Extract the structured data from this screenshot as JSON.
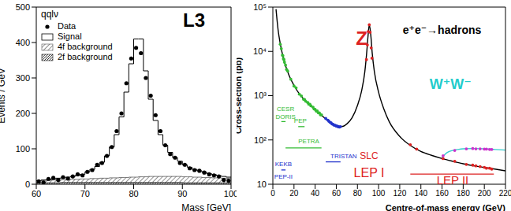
{
  "chart_data": [
    {
      "type": "histogram",
      "title": "L3",
      "legend_title": "qqlν",
      "xlabel": "Mass [GeV]",
      "ylabel": "Events / GeV",
      "legend": "upper left",
      "bins": [
        60,
        61,
        62,
        63,
        64,
        65,
        66,
        67,
        68,
        69,
        70,
        71,
        72,
        73,
        74,
        75,
        76,
        77,
        78,
        79,
        80,
        81,
        82,
        83,
        84,
        85,
        86,
        87,
        88,
        89,
        90,
        91,
        92,
        93,
        94,
        95,
        96,
        97,
        98,
        99,
        100
      ],
      "xlim": [
        60,
        100
      ],
      "xticks": [
        60,
        70,
        80,
        90,
        100
      ],
      "ylim": [
        0,
        500
      ],
      "yticks": [
        0,
        100,
        200,
        300,
        400,
        500
      ],
      "series": [
        {
          "name": "Data",
          "type": "scatter",
          "marker": "circle",
          "color": "#000000",
          "values": [
            8,
            5,
            15,
            18,
            12,
            20,
            16,
            22,
            28,
            25,
            35,
            40,
            55,
            60,
            80,
            105,
            150,
            200,
            285,
            355,
            385,
            370,
            300,
            250,
            195,
            150,
            110,
            85,
            75,
            60,
            55,
            45,
            40,
            38,
            33,
            28,
            25,
            22,
            12,
            10
          ]
        },
        {
          "name": "Signal",
          "type": "step",
          "color": "#000000",
          "values": [
            10,
            12,
            13,
            15,
            17,
            18,
            20,
            22,
            25,
            28,
            35,
            42,
            50,
            62,
            80,
            105,
            140,
            190,
            260,
            340,
            410,
            410,
            320,
            240,
            180,
            140,
            110,
            90,
            75,
            65,
            55,
            48,
            42,
            38,
            34,
            30,
            27,
            24,
            22,
            20
          ]
        },
        {
          "name": "4f background",
          "type": "area",
          "color": "#555555",
          "values": [
            10,
            11,
            11,
            12,
            12,
            13,
            13,
            14,
            14,
            15,
            15,
            16,
            16,
            17,
            17,
            18,
            18,
            19,
            19,
            20,
            20,
            21,
            21,
            22,
            22,
            22,
            22,
            22,
            22,
            22,
            21,
            21,
            20,
            20,
            19,
            19,
            18,
            18,
            17,
            17
          ]
        },
        {
          "name": "2f background",
          "type": "area",
          "color": "#111111",
          "values": [
            4,
            4,
            4,
            4,
            4,
            5,
            5,
            5,
            5,
            5,
            5,
            5,
            5,
            5,
            5,
            5,
            5,
            5,
            5,
            5,
            5,
            5,
            5,
            5,
            5,
            5,
            5,
            5,
            5,
            5,
            4,
            4,
            4,
            4,
            4,
            4,
            4,
            4,
            4,
            4
          ]
        }
      ]
    },
    {
      "type": "line",
      "log": "y",
      "xlabel": "Centre-of-mass energy (GeV)",
      "ylabel": "Cross-section (pb)",
      "xlim": [
        0,
        220
      ],
      "xticks": [
        0,
        20,
        40,
        60,
        80,
        100,
        120,
        140,
        160,
        180,
        200,
        220
      ],
      "ylim": [
        10,
        100000
      ],
      "yticks": [
        10,
        {
          "value": 100,
          "label": "10²"
        },
        {
          "value": 1000,
          "label": "10³"
        },
        {
          "value": 10000,
          "label": "10⁴"
        },
        {
          "value": 100000,
          "label": "10⁵"
        }
      ],
      "series": [
        {
          "type": "line",
          "color": "#000000",
          "x": [
            3,
            4,
            5,
            7,
            10,
            15,
            20,
            25,
            30,
            35,
            40,
            45,
            50,
            55,
            60,
            65,
            70,
            75,
            80,
            84,
            87,
            89,
            90,
            91.2,
            92.5,
            94,
            96,
            100,
            105,
            110,
            120,
            130,
            140,
            150,
            160,
            170,
            180,
            190,
            200,
            210,
            220
          ],
          "values": [
            90000,
            50000,
            30000,
            15000,
            7000,
            3000,
            1700,
            1100,
            800,
            620,
            480,
            380,
            300,
            240,
            210,
            200,
            230,
            320,
            600,
            1300,
            3500,
            11000,
            22000,
            40000,
            25000,
            9000,
            3500,
            1200,
            500,
            260,
            120,
            75,
            55,
            45,
            38,
            33,
            29,
            26,
            24,
            22,
            20
          ]
        },
        {
          "type": "line",
          "color": "#33cccc",
          "x": [
            160,
            163,
            166,
            170,
            175,
            180,
            190,
            200,
            210,
            220
          ],
          "values": [
            40,
            48,
            54,
            58,
            61,
            63,
            64,
            63,
            61,
            59
          ]
        },
        {
          "type": "scatter",
          "marker": "circle",
          "color": "#33bb33",
          "x": [
            7,
            8,
            9,
            9.5,
            10,
            10.5,
            11,
            12,
            13,
            14,
            17,
            20,
            22,
            25,
            27,
            29,
            30,
            31,
            33,
            34,
            35,
            36,
            38,
            39,
            40,
            41,
            42,
            43,
            44,
            45,
            46
          ],
          "values": [
            14500,
            11500,
            8200,
            8000,
            6800,
            6500,
            5700,
            4900,
            3900,
            3600,
            2350,
            1650,
            1500,
            1080,
            980,
            830,
            820,
            750,
            700,
            640,
            640,
            590,
            550,
            500,
            490,
            450,
            450,
            410,
            410,
            370,
            370
          ]
        },
        {
          "type": "scatter",
          "marker": "circle",
          "color": "#2233cc",
          "x": [
            50,
            52,
            53,
            54,
            55,
            56,
            57,
            58,
            59,
            60,
            61,
            61.4,
            62,
            63,
            64
          ],
          "values": [
            305,
            280,
            265,
            250,
            245,
            230,
            225,
            215,
            215,
            205,
            205,
            200,
            200,
            195,
            200
          ]
        },
        {
          "type": "scatter",
          "marker": "circle",
          "color": "#dd2222",
          "x": [
            88.5,
            89.4,
            90.2,
            91.2,
            92,
            93,
            93.7,
            130,
            136,
            161,
            172,
            183,
            189,
            192,
            196,
            200,
            202,
            205,
            207
          ],
          "values": [
            6500,
            14000,
            28000,
            40000,
            27000,
            12000,
            7000,
            78,
            62,
            38,
            33,
            28,
            27,
            26,
            25,
            24,
            23,
            23,
            22
          ]
        },
        {
          "type": "scatter",
          "marker": "circle",
          "color": "#cc33cc",
          "x": [
            161,
            172,
            183,
            189,
            192,
            196,
            200,
            202,
            205,
            207
          ],
          "values": [
            44,
            58,
            63,
            64,
            63,
            63,
            62,
            62,
            61,
            61
          ]
        }
      ],
      "annotations": [
        {
          "text": "Z",
          "x": 84,
          "y": 20000,
          "color": "#dd2222"
        },
        {
          "text": "e⁺e⁻→hadrons",
          "x": 160,
          "y": 30000,
          "color": "#000000"
        },
        {
          "text": "W⁺W⁻",
          "x": 168,
          "y": 1800,
          "color": "#22cccc"
        },
        {
          "text": "CESR",
          "x": 12,
          "y": 500,
          "color": "#33bb33"
        },
        {
          "text": "DORIS",
          "x": 12,
          "y": 330,
          "color": "#33bb33"
        },
        {
          "text": "PEP",
          "x": 26,
          "y": 270,
          "color": "#33bb33"
        },
        {
          "text": "PETRA",
          "x": 34,
          "y": 95,
          "color": "#33bb33"
        },
        {
          "text": "TRISTAN",
          "x": 67,
          "y": 42,
          "color": "#2233cc"
        },
        {
          "text": "KEKB",
          "x": 10,
          "y": 28,
          "color": "#2233cc"
        },
        {
          "text": "PEP-II",
          "x": 10,
          "y": 15,
          "color": "#2233cc"
        },
        {
          "text": "SLC",
          "x": 91,
          "y": 44,
          "color": "#dd2222"
        },
        {
          "text": "LEP I",
          "x": 91,
          "y": 18,
          "color": "#dd2222"
        },
        {
          "text": "LEP II",
          "x": 170,
          "y": 12.5,
          "color": "#dd2222"
        }
      ],
      "segments": [
        {
          "x": [
            8,
            12
          ],
          "y": 260,
          "color": "#33bb33"
        },
        {
          "x": [
            24,
            30
          ],
          "y": 200,
          "color": "#33bb33"
        },
        {
          "x": [
            12,
            46
          ],
          "y": 66,
          "color": "#33bb33"
        },
        {
          "x": [
            50,
            64
          ],
          "y": 32,
          "color": "#2233cc"
        },
        {
          "x": [
            8,
            12
          ],
          "y": 21,
          "color": "#2233cc"
        },
        {
          "x": [
            130,
            209
          ],
          "y": 17,
          "color": "#dd2222"
        }
      ]
    }
  ]
}
